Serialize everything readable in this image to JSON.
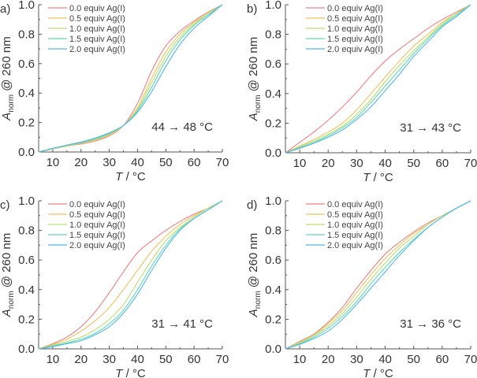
{
  "chart_data": [
    {
      "type": "line",
      "panel": "a)",
      "xlabel": "T / °C",
      "ylabel": "A_norm @ 260 nm",
      "xlim": [
        5,
        70
      ],
      "ylim": [
        0,
        1.0
      ],
      "xticks": [
        "10",
        "20",
        "30",
        "40",
        "50",
        "60",
        "70"
      ],
      "yticks": [
        "0.0",
        "0.2",
        "0.4",
        "0.6",
        "0.8",
        "1.0"
      ],
      "annotation": "44 → 48 °C",
      "x": [
        5,
        10,
        15,
        20,
        25,
        30,
        35,
        40,
        45,
        50,
        55,
        60,
        65,
        70
      ],
      "series": [
        {
          "name": "0.0 equiv  Ag(I)",
          "color": "#f08080",
          "values": [
            0.0,
            0.02,
            0.04,
            0.055,
            0.075,
            0.11,
            0.18,
            0.33,
            0.55,
            0.72,
            0.82,
            0.89,
            0.95,
            1.0
          ]
        },
        {
          "name": "0.5 equiv  Ag(I)",
          "color": "#f0c060",
          "values": [
            0.0,
            0.02,
            0.04,
            0.06,
            0.08,
            0.115,
            0.18,
            0.3,
            0.5,
            0.68,
            0.8,
            0.88,
            0.94,
            1.0
          ]
        },
        {
          "name": "1.0 equiv  Ag(I)",
          "color": "#b8e070",
          "values": [
            0.0,
            0.022,
            0.042,
            0.062,
            0.085,
            0.12,
            0.18,
            0.29,
            0.47,
            0.65,
            0.78,
            0.87,
            0.94,
            1.0
          ]
        },
        {
          "name": "1.5 equiv  Ag(I)",
          "color": "#60d8b0",
          "values": [
            0.0,
            0.024,
            0.045,
            0.065,
            0.09,
            0.125,
            0.18,
            0.28,
            0.44,
            0.62,
            0.76,
            0.86,
            0.93,
            1.0
          ]
        },
        {
          "name": "2.0 equiv  Ag(I)",
          "color": "#50b8f0",
          "values": [
            0.0,
            0.025,
            0.047,
            0.068,
            0.095,
            0.13,
            0.18,
            0.27,
            0.41,
            0.58,
            0.73,
            0.84,
            0.92,
            1.0
          ]
        }
      ]
    },
    {
      "type": "line",
      "panel": "b)",
      "xlabel": "T / °C",
      "ylabel": "A_norm @ 260 nm",
      "xlim": [
        5,
        70
      ],
      "ylim": [
        0,
        1.0
      ],
      "xticks": [
        "10",
        "20",
        "30",
        "40",
        "50",
        "60",
        "70"
      ],
      "yticks": [
        "0.0",
        "0.2",
        "0.4",
        "0.6",
        "0.8",
        "1.0"
      ],
      "annotation": "31 → 43 °C",
      "x": [
        5,
        10,
        15,
        20,
        25,
        30,
        35,
        40,
        45,
        50,
        55,
        60,
        65,
        70
      ],
      "series": [
        {
          "name": "0.0 equiv  Ag(I)",
          "color": "#f08080",
          "values": [
            0.0,
            0.07,
            0.14,
            0.22,
            0.31,
            0.41,
            0.52,
            0.62,
            0.7,
            0.77,
            0.84,
            0.9,
            0.95,
            1.0
          ]
        },
        {
          "name": "0.5 equiv  Ag(I)",
          "color": "#f0c060",
          "values": [
            0.0,
            0.045,
            0.09,
            0.14,
            0.2,
            0.29,
            0.4,
            0.51,
            0.62,
            0.72,
            0.8,
            0.88,
            0.94,
            1.0
          ]
        },
        {
          "name": "1.0 equiv  Ag(I)",
          "color": "#b8e070",
          "values": [
            0.0,
            0.04,
            0.08,
            0.125,
            0.18,
            0.26,
            0.36,
            0.48,
            0.59,
            0.69,
            0.78,
            0.87,
            0.94,
            1.0
          ]
        },
        {
          "name": "1.5 equiv  Ag(I)",
          "color": "#60d8b0",
          "values": [
            0.0,
            0.035,
            0.07,
            0.115,
            0.17,
            0.24,
            0.34,
            0.45,
            0.56,
            0.67,
            0.77,
            0.86,
            0.93,
            1.0
          ]
        },
        {
          "name": "2.0 equiv  Ag(I)",
          "color": "#50b8f0",
          "values": [
            0.0,
            0.03,
            0.065,
            0.105,
            0.155,
            0.225,
            0.31,
            0.42,
            0.53,
            0.65,
            0.75,
            0.85,
            0.92,
            1.0
          ]
        }
      ]
    },
    {
      "type": "line",
      "panel": "c)",
      "xlabel": "T / °C",
      "ylabel": "A_norm @ 260 nm",
      "xlim": [
        5,
        70
      ],
      "ylim": [
        0,
        1.0
      ],
      "xticks": [
        "10",
        "20",
        "30",
        "40",
        "50",
        "60",
        "70"
      ],
      "yticks": [
        "0.0",
        "0.2",
        "0.4",
        "0.6",
        "0.8",
        "1.0"
      ],
      "annotation": "31 → 41 °C",
      "x": [
        5,
        10,
        15,
        20,
        25,
        30,
        35,
        40,
        45,
        50,
        55,
        60,
        65,
        70
      ],
      "series": [
        {
          "name": "0.0 equiv  Ag(I)",
          "color": "#f08080",
          "values": [
            0.0,
            0.035,
            0.08,
            0.15,
            0.25,
            0.38,
            0.52,
            0.65,
            0.73,
            0.8,
            0.86,
            0.91,
            0.95,
            1.0
          ]
        },
        {
          "name": "0.5 equiv  Ag(I)",
          "color": "#f0c060",
          "values": [
            0.0,
            0.03,
            0.065,
            0.12,
            0.19,
            0.28,
            0.4,
            0.53,
            0.66,
            0.76,
            0.84,
            0.9,
            0.95,
            1.0
          ]
        },
        {
          "name": "1.0 equiv  Ag(I)",
          "color": "#b8e070",
          "values": [
            0.0,
            0.025,
            0.05,
            0.08,
            0.13,
            0.2,
            0.3,
            0.45,
            0.6,
            0.73,
            0.82,
            0.89,
            0.95,
            1.0
          ]
        },
        {
          "name": "1.5 equiv  Ag(I)",
          "color": "#60d8b0",
          "values": [
            0.0,
            0.02,
            0.04,
            0.065,
            0.105,
            0.17,
            0.26,
            0.4,
            0.56,
            0.7,
            0.81,
            0.88,
            0.94,
            1.0
          ]
        },
        {
          "name": "2.0 equiv  Ag(I)",
          "color": "#50b8f0",
          "values": [
            0.0,
            0.015,
            0.035,
            0.055,
            0.095,
            0.15,
            0.24,
            0.37,
            0.53,
            0.68,
            0.8,
            0.88,
            0.94,
            1.0
          ]
        }
      ]
    },
    {
      "type": "line",
      "panel": "d)",
      "xlabel": "T / °C",
      "ylabel": "A_norm @ 260 nm",
      "xlim": [
        5,
        70
      ],
      "ylim": [
        0,
        1.0
      ],
      "xticks": [
        "10",
        "20",
        "30",
        "40",
        "50",
        "60",
        "70"
      ],
      "yticks": [
        "0.0",
        "0.2",
        "0.4",
        "0.6",
        "0.8",
        "1.0"
      ],
      "annotation": "31 → 36 °C",
      "x": [
        5,
        10,
        15,
        20,
        25,
        30,
        35,
        40,
        45,
        50,
        55,
        60,
        65,
        70
      ],
      "series": [
        {
          "name": "0.0 equiv  Ag(I)",
          "color": "#f08080",
          "values": [
            0.0,
            0.05,
            0.1,
            0.18,
            0.28,
            0.41,
            0.53,
            0.64,
            0.72,
            0.79,
            0.85,
            0.9,
            0.95,
            1.0
          ]
        },
        {
          "name": "0.5 equiv  Ag(I)",
          "color": "#f0c060",
          "values": [
            0.0,
            0.045,
            0.095,
            0.17,
            0.26,
            0.38,
            0.5,
            0.61,
            0.7,
            0.78,
            0.84,
            0.9,
            0.95,
            1.0
          ]
        },
        {
          "name": "1.0 equiv  Ag(I)",
          "color": "#b8e070",
          "values": [
            0.0,
            0.04,
            0.09,
            0.155,
            0.24,
            0.35,
            0.47,
            0.58,
            0.68,
            0.76,
            0.84,
            0.9,
            0.95,
            1.0
          ]
        },
        {
          "name": "1.5 equiv  Ag(I)",
          "color": "#60d8b0",
          "values": [
            0.0,
            0.035,
            0.08,
            0.14,
            0.22,
            0.32,
            0.44,
            0.55,
            0.65,
            0.74,
            0.82,
            0.89,
            0.95,
            1.0
          ]
        },
        {
          "name": "2.0 equiv  Ag(I)",
          "color": "#50b8f0",
          "values": [
            0.0,
            0.03,
            0.07,
            0.12,
            0.2,
            0.3,
            0.41,
            0.52,
            0.63,
            0.73,
            0.82,
            0.89,
            0.95,
            1.0
          ]
        }
      ]
    }
  ]
}
